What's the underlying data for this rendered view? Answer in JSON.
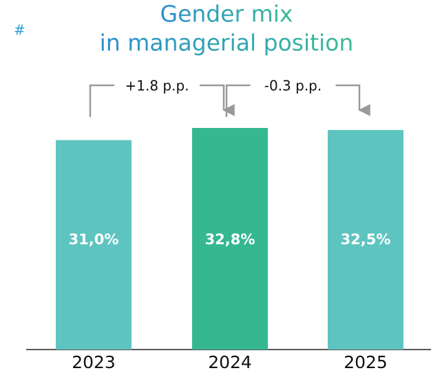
{
  "chart_data": {
    "type": "bar",
    "corner_mark": "#",
    "title": [
      "Gender mix",
      "in managerial position"
    ],
    "categories": [
      "2023",
      "2024",
      "2025"
    ],
    "values": [
      31.0,
      32.8,
      32.5
    ],
    "value_labels": [
      "31,0%",
      "32,8%",
      "32,5%"
    ],
    "colors": [
      "#5ec4c0",
      "#35b88f",
      "#5ec4c0"
    ],
    "annotations": [
      "+1.8 p.p.",
      "-0.3 p.p."
    ],
    "ylim": [
      0,
      33
    ]
  }
}
